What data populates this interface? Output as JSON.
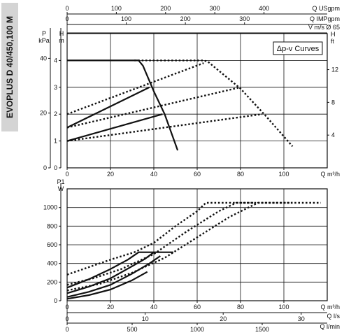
{
  "sidebar": {
    "model_label": "EVOPLUS D 40/450,100 M"
  },
  "chart_data": [
    {
      "type": "line",
      "legend_box": "Δp-v Curves",
      "x_axis": {
        "label": "Q m³/h",
        "ticks": [
          "0",
          "20",
          "40",
          "60",
          "80",
          "100"
        ],
        "range": [
          0,
          120
        ]
      },
      "top_axes": [
        {
          "label": "Q USgpm",
          "ticks": [
            "0",
            "100",
            "200",
            "300",
            "400"
          ]
        },
        {
          "label": "Q IMPgpm",
          "ticks": [
            "0",
            "100",
            "200",
            "300"
          ]
        },
        {
          "label": "V m/s Ø 65"
        }
      ],
      "y_axis_left_m": {
        "label": "H m",
        "ticks": [
          "0",
          "1",
          "2",
          "3",
          "4"
        ],
        "range": [
          0,
          5
        ]
      },
      "y_axis_left_kpa": {
        "label": "P kPa",
        "ticks": [
          "0",
          "20",
          "40"
        ]
      },
      "y_axis_right_ft": {
        "label": "H ft",
        "ticks": [
          "4",
          "8",
          "12"
        ]
      },
      "series": [
        {
          "style": "solid",
          "points": [
            [
              0,
              4
            ],
            [
              33,
              4
            ],
            [
              35,
              3.8
            ],
            [
              40,
              2.85
            ],
            [
              45,
              2.0
            ],
            [
              51,
              0.65
            ]
          ]
        },
        {
          "style": "solid",
          "points": [
            [
              0,
              1.5
            ],
            [
              38,
              3.0
            ]
          ]
        },
        {
          "style": "solid",
          "points": [
            [
              0,
              1.0
            ],
            [
              44,
              2.0
            ]
          ]
        },
        {
          "style": "dotted",
          "points": [
            [
              0,
              2.0
            ],
            [
              63,
              3.9
            ]
          ]
        },
        {
          "style": "dotted",
          "points": [
            [
              0,
              1.5
            ],
            [
              80,
              3.0
            ]
          ]
        },
        {
          "style": "dotted",
          "points": [
            [
              0,
              1.0
            ],
            [
              90,
              2.0
            ]
          ]
        },
        {
          "style": "dotted",
          "points": [
            [
              31,
              4
            ],
            [
              63,
              4
            ],
            [
              65,
              3.95
            ],
            [
              80,
              2.95
            ],
            [
              92,
              1.9
            ],
            [
              104,
              0.8
            ]
          ]
        }
      ]
    },
    {
      "type": "line",
      "x_axis": {
        "label": "Q m³/h",
        "ticks": [
          "0",
          "20",
          "40",
          "60",
          "80",
          "100"
        ],
        "range": [
          0,
          120
        ]
      },
      "bottom_axes": [
        {
          "label": "Q l/s",
          "ticks": [
            "0",
            "10",
            "20",
            "30"
          ]
        },
        {
          "label": "Q l/min",
          "ticks": [
            "0",
            "500",
            "1000",
            "1500"
          ]
        }
      ],
      "y_axis": {
        "label": "P1 W",
        "ticks": [
          "0",
          "200",
          "400",
          "600",
          "800",
          "1000"
        ],
        "range": [
          0,
          1200
        ]
      },
      "series": [
        {
          "style": "solid",
          "points": [
            [
              0,
              140
            ],
            [
              10,
              230
            ],
            [
              20,
              340
            ],
            [
              28,
              440
            ],
            [
              33,
              520
            ],
            [
              49,
              520
            ]
          ]
        },
        {
          "style": "solid",
          "points": [
            [
              0,
              80
            ],
            [
              10,
              150
            ],
            [
              20,
              240
            ],
            [
              30,
              370
            ],
            [
              36,
              450
            ],
            [
              40,
              520
            ]
          ]
        },
        {
          "style": "solid",
          "points": [
            [
              0,
              40
            ],
            [
              10,
              95
            ],
            [
              20,
              170
            ],
            [
              30,
              290
            ],
            [
              38,
              400
            ],
            [
              43,
              480
            ]
          ]
        },
        {
          "style": "solid",
          "points": [
            [
              0,
              20
            ],
            [
              10,
              60
            ],
            [
              20,
              120
            ],
            [
              30,
              220
            ],
            [
              37,
              310
            ]
          ]
        },
        {
          "style": "dotted",
          "points": [
            [
              0,
              280
            ],
            [
              10,
              360
            ],
            [
              20,
              440
            ],
            [
              31,
              520
            ],
            [
              40,
              620
            ],
            [
              50,
              800
            ],
            [
              60,
              960
            ],
            [
              64,
              1050
            ],
            [
              86,
              1050
            ]
          ]
        },
        {
          "style": "dotted",
          "points": [
            [
              0,
              170
            ],
            [
              12,
              240
            ],
            [
              25,
              340
            ],
            [
              40,
              500
            ],
            [
              55,
              740
            ],
            [
              70,
              960
            ],
            [
              78,
              1050
            ],
            [
              104,
              1050
            ]
          ]
        },
        {
          "style": "dotted",
          "points": [
            [
              0,
              110
            ],
            [
              15,
              180
            ],
            [
              30,
              300
            ],
            [
              45,
              460
            ],
            [
              60,
              680
            ],
            [
              75,
              900
            ],
            [
              88,
              1050
            ],
            [
              117,
              1050
            ]
          ]
        }
      ]
    }
  ]
}
